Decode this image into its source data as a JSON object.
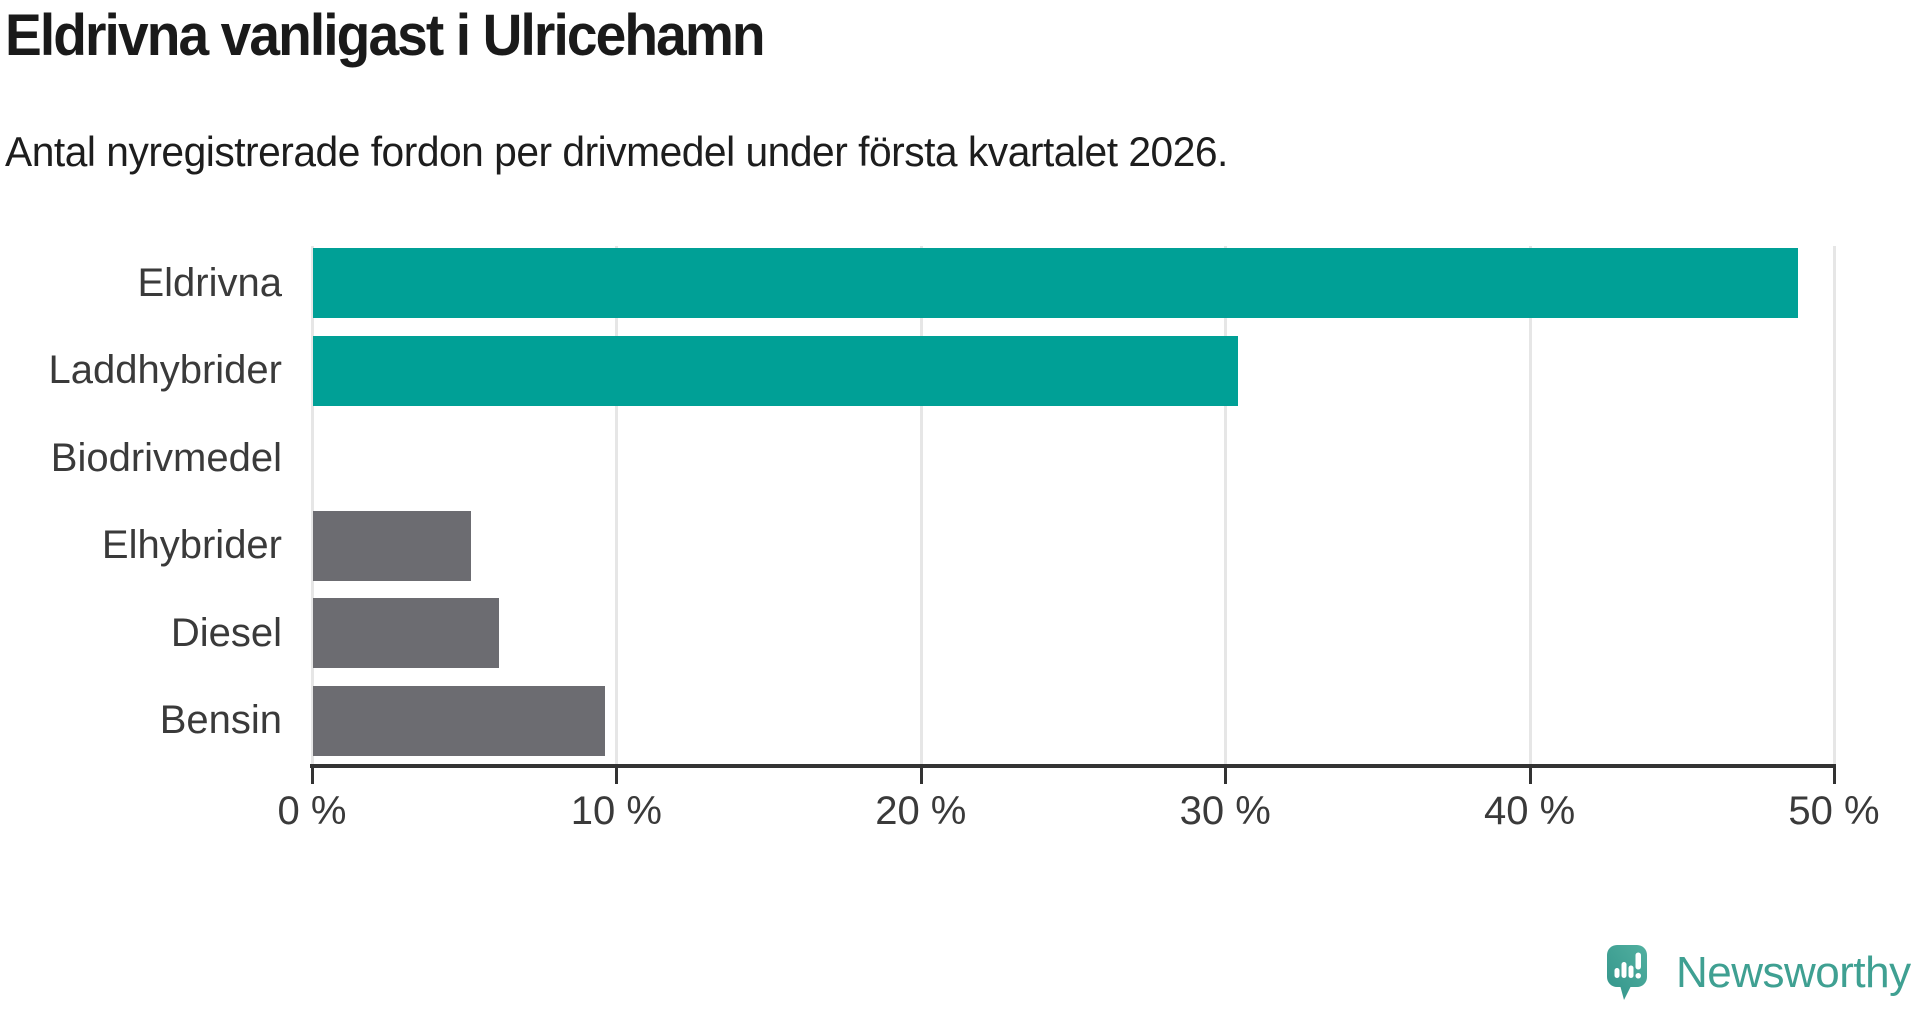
{
  "header": {
    "title": "Eldrivna vanligast i Ulricehamn",
    "subtitle": "Antal nyregistrerade fordon per drivmedel under första kvartalet 2026."
  },
  "chart_data": {
    "type": "bar",
    "orientation": "horizontal",
    "title": "Eldrivna vanligast i Ulricehamn",
    "subtitle": "Antal nyregistrerade fordon per drivmedel under första kvartalet 2026.",
    "categories": [
      "Eldrivna",
      "Laddhybrider",
      "Biodrivmedel",
      "Elhybrider",
      "Diesel",
      "Bensin"
    ],
    "values": [
      48.8,
      30.4,
      0,
      5.2,
      6.1,
      9.6
    ],
    "unit": "%",
    "xlabel": "",
    "ylabel": "",
    "xlim": [
      0,
      50
    ],
    "xticks": [
      0,
      10,
      20,
      30,
      40,
      50
    ],
    "xtick_labels": [
      "0 %",
      "10 %",
      "20 %",
      "30 %",
      "40 %",
      "50 %"
    ],
    "grid": true,
    "legend": false,
    "bar_colors": [
      "#00a096",
      "#00a096",
      "#6c6c71",
      "#6c6c71",
      "#6c6c71",
      "#6c6c71"
    ],
    "highlight_color": "#00a096",
    "default_color": "#6c6c71",
    "gridline_color": "#e6e6e6",
    "axis_color": "#333333"
  },
  "footer": {
    "logo_text": "Newsworthy",
    "logo_color": "#3fa092"
  }
}
